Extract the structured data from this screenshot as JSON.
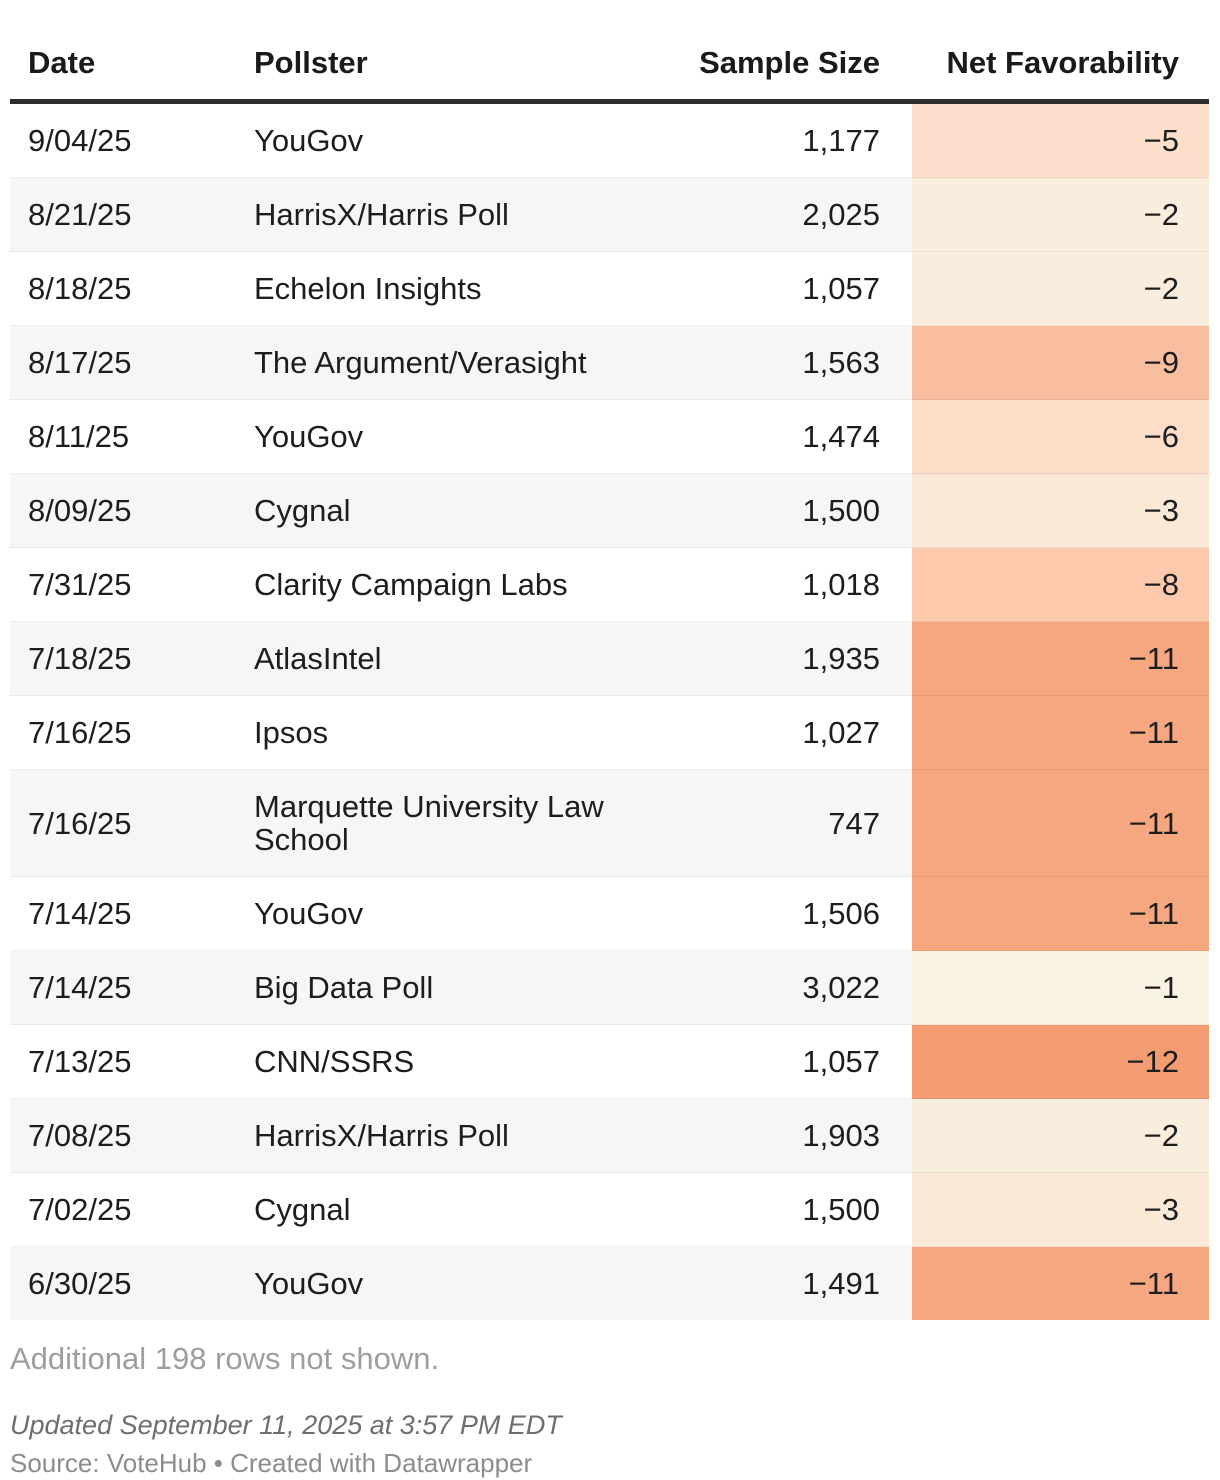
{
  "table": {
    "columns": [
      "Date",
      "Pollster",
      "Sample Size",
      "Net Favorability"
    ],
    "rows": [
      {
        "date": "9/04/25",
        "pollster": "YouGov",
        "sample_size": "1,177",
        "net_favorability": "−5",
        "net_color": "#fce0cc"
      },
      {
        "date": "8/21/25",
        "pollster": "HarrisX/Harris Poll",
        "sample_size": "2,025",
        "net_favorability": "−2",
        "net_color": "#f9eedd"
      },
      {
        "date": "8/18/25",
        "pollster": "Echelon Insights",
        "sample_size": "1,057",
        "net_favorability": "−2",
        "net_color": "#f9eedd"
      },
      {
        "date": "8/17/25",
        "pollster": "The Argument/Verasight",
        "sample_size": "1,563",
        "net_favorability": "−9",
        "net_color": "#f9bda0"
      },
      {
        "date": "8/11/25",
        "pollster": "YouGov",
        "sample_size": "1,474",
        "net_favorability": "−6",
        "net_color": "#fcddc8"
      },
      {
        "date": "8/09/25",
        "pollster": "Cygnal",
        "sample_size": "1,500",
        "net_favorability": "−3",
        "net_color": "#f9e9d6"
      },
      {
        "date": "7/31/25",
        "pollster": "Clarity Campaign Labs",
        "sample_size": "1,018",
        "net_favorability": "−8",
        "net_color": "#fdc9ad"
      },
      {
        "date": "7/18/25",
        "pollster": "AtlasIntel",
        "sample_size": "1,935",
        "net_favorability": "−11",
        "net_color": "#f5a77f"
      },
      {
        "date": "7/16/25",
        "pollster": "Ipsos",
        "sample_size": "1,027",
        "net_favorability": "−11",
        "net_color": "#f5a77f"
      },
      {
        "date": "7/16/25",
        "pollster": "Marquette University Law School",
        "sample_size": "747",
        "net_favorability": "−11",
        "net_color": "#f5a77f"
      },
      {
        "date": "7/14/25",
        "pollster": "YouGov",
        "sample_size": "1,506",
        "net_favorability": "−11",
        "net_color": "#f5a77f"
      },
      {
        "date": "7/14/25",
        "pollster": "Big Data Poll",
        "sample_size": "3,022",
        "net_favorability": "−1",
        "net_color": "#faf2e2"
      },
      {
        "date": "7/13/25",
        "pollster": "CNN/SSRS",
        "sample_size": "1,057",
        "net_favorability": "−12",
        "net_color": "#f39c72"
      },
      {
        "date": "7/08/25",
        "pollster": "HarrisX/Harris Poll",
        "sample_size": "1,903",
        "net_favorability": "−2",
        "net_color": "#f9eedd"
      },
      {
        "date": "7/02/25",
        "pollster": "Cygnal",
        "sample_size": "1,500",
        "net_favorability": "−3",
        "net_color": "#f9e9d6"
      },
      {
        "date": "6/30/25",
        "pollster": "YouGov",
        "sample_size": "1,491",
        "net_favorability": "−11",
        "net_color": "#f5a77f"
      }
    ]
  },
  "footer": {
    "rows_note": "Additional 198 rows not shown.",
    "updated": "Updated September 11, 2025 at 3:57 PM EDT",
    "source": "Source: VoteHub • Created with Datawrapper"
  },
  "chart_data": {
    "type": "table",
    "columns": [
      "Date",
      "Pollster",
      "Sample Size",
      "Net Favorability"
    ],
    "rows": [
      [
        "9/04/25",
        "YouGov",
        1177,
        -5
      ],
      [
        "8/21/25",
        "HarrisX/Harris Poll",
        2025,
        -2
      ],
      [
        "8/18/25",
        "Echelon Insights",
        1057,
        -2
      ],
      [
        "8/17/25",
        "The Argument/Verasight",
        1563,
        -9
      ],
      [
        "8/11/25",
        "YouGov",
        1474,
        -6
      ],
      [
        "8/09/25",
        "Cygnal",
        1500,
        -3
      ],
      [
        "7/31/25",
        "Clarity Campaign Labs",
        1018,
        -8
      ],
      [
        "7/18/25",
        "AtlasIntel",
        1935,
        -11
      ],
      [
        "7/16/25",
        "Ipsos",
        1027,
        -11
      ],
      [
        "7/16/25",
        "Marquette University Law School",
        747,
        -11
      ],
      [
        "7/14/25",
        "YouGov",
        1506,
        -11
      ],
      [
        "7/14/25",
        "Big Data Poll",
        3022,
        -1
      ],
      [
        "7/13/25",
        "CNN/SSRS",
        1057,
        -12
      ],
      [
        "7/08/25",
        "HarrisX/Harris Poll",
        1903,
        -2
      ],
      [
        "7/02/25",
        "Cygnal",
        1500,
        -3
      ],
      [
        "6/30/25",
        "YouGov",
        1491,
        -11
      ]
    ],
    "heatmap_column": "Net Favorability",
    "heatmap_value_range": [
      -12,
      -1
    ],
    "heatmap_color_range": [
      "#f39c72",
      "#faf2e2"
    ],
    "hidden_rows_note": "Additional 198 rows not shown.",
    "updated": "Updated September 11, 2025 at 3:57 PM EDT",
    "source": "Source: VoteHub • Created with Datawrapper"
  }
}
